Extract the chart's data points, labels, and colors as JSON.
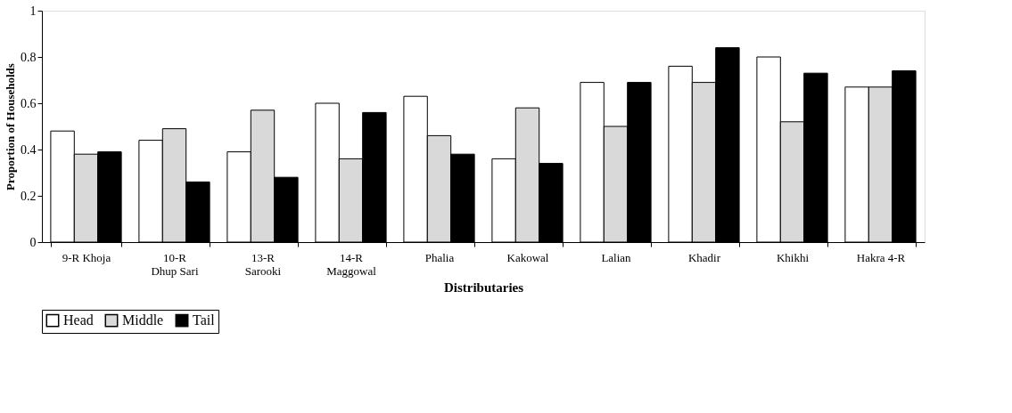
{
  "chart_data": {
    "type": "bar",
    "xlabel": "Distributaries",
    "ylabel": "Proportion of Households",
    "categories": [
      "9-R Khoja",
      "10-R Dhup Sari",
      "13-R Sarooki",
      "14-R Maggowal",
      "Phalia",
      "Kakowal",
      "Lalian",
      "Khadir",
      "Khikhi",
      "Hakra 4-R"
    ],
    "series": [
      {
        "name": "Head",
        "color": "#ffffff",
        "values": [
          0.48,
          0.44,
          0.39,
          0.6,
          0.63,
          0.36,
          0.69,
          0.76,
          0.8,
          0.67
        ]
      },
      {
        "name": "Middle",
        "color": "#d9d9d9",
        "values": [
          0.38,
          0.49,
          0.57,
          0.36,
          0.46,
          0.58,
          0.5,
          0.69,
          0.52,
          0.67
        ]
      },
      {
        "name": "Tail",
        "color": "#000000",
        "values": [
          0.39,
          0.26,
          0.28,
          0.56,
          0.38,
          0.34,
          0.69,
          0.84,
          0.73,
          0.74
        ]
      }
    ],
    "ylim": [
      0,
      1
    ],
    "yticks": [
      0,
      0.2,
      0.4,
      0.6,
      0.8,
      1
    ],
    "grid": false,
    "legend": "bottom"
  }
}
